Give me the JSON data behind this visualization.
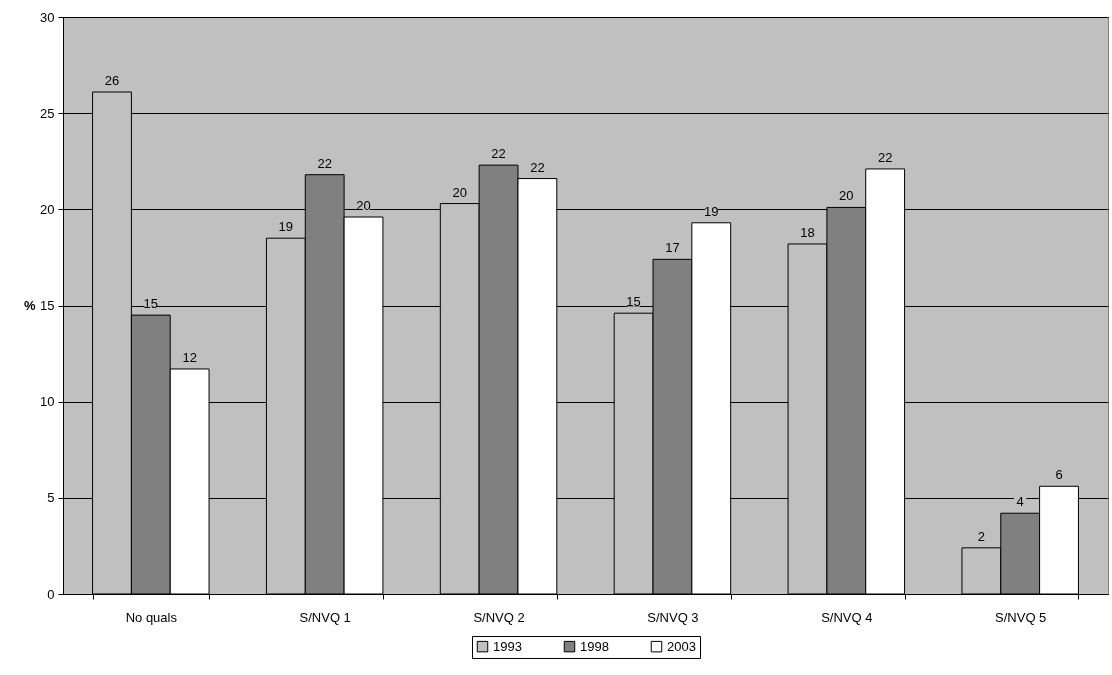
{
  "chart_data": {
    "type": "bar",
    "ylabel": "%",
    "categories": [
      "No quals",
      "S/NVQ 1",
      "S/NVQ 2",
      "S/NVQ 3",
      "S/NVQ 4",
      "S/NVQ 5"
    ],
    "series": [
      {
        "name": "1993",
        "color": "#c0c0c0",
        "values": [
          26.1,
          18.5,
          20.3,
          14.6,
          18.2,
          2.4
        ],
        "value_labels": [
          "26",
          "19",
          "20",
          "15",
          "18",
          "2"
        ]
      },
      {
        "name": "1998",
        "color": "#808080",
        "values": [
          14.5,
          21.8,
          22.3,
          17.4,
          20.1,
          4.2
        ],
        "value_labels": [
          "15",
          "22",
          "22",
          "17",
          "20",
          "4"
        ]
      },
      {
        "name": "2003",
        "color": "#ffffff",
        "values": [
          11.7,
          19.6,
          21.6,
          19.3,
          22.1,
          5.6
        ],
        "value_labels": [
          "12",
          "20",
          "22",
          "19",
          "22",
          "6"
        ]
      }
    ],
    "ylim": [
      0,
      30
    ],
    "yticks": [
      0,
      5,
      10,
      15,
      20,
      25,
      30
    ],
    "grid": "y",
    "legend": "bottom"
  }
}
